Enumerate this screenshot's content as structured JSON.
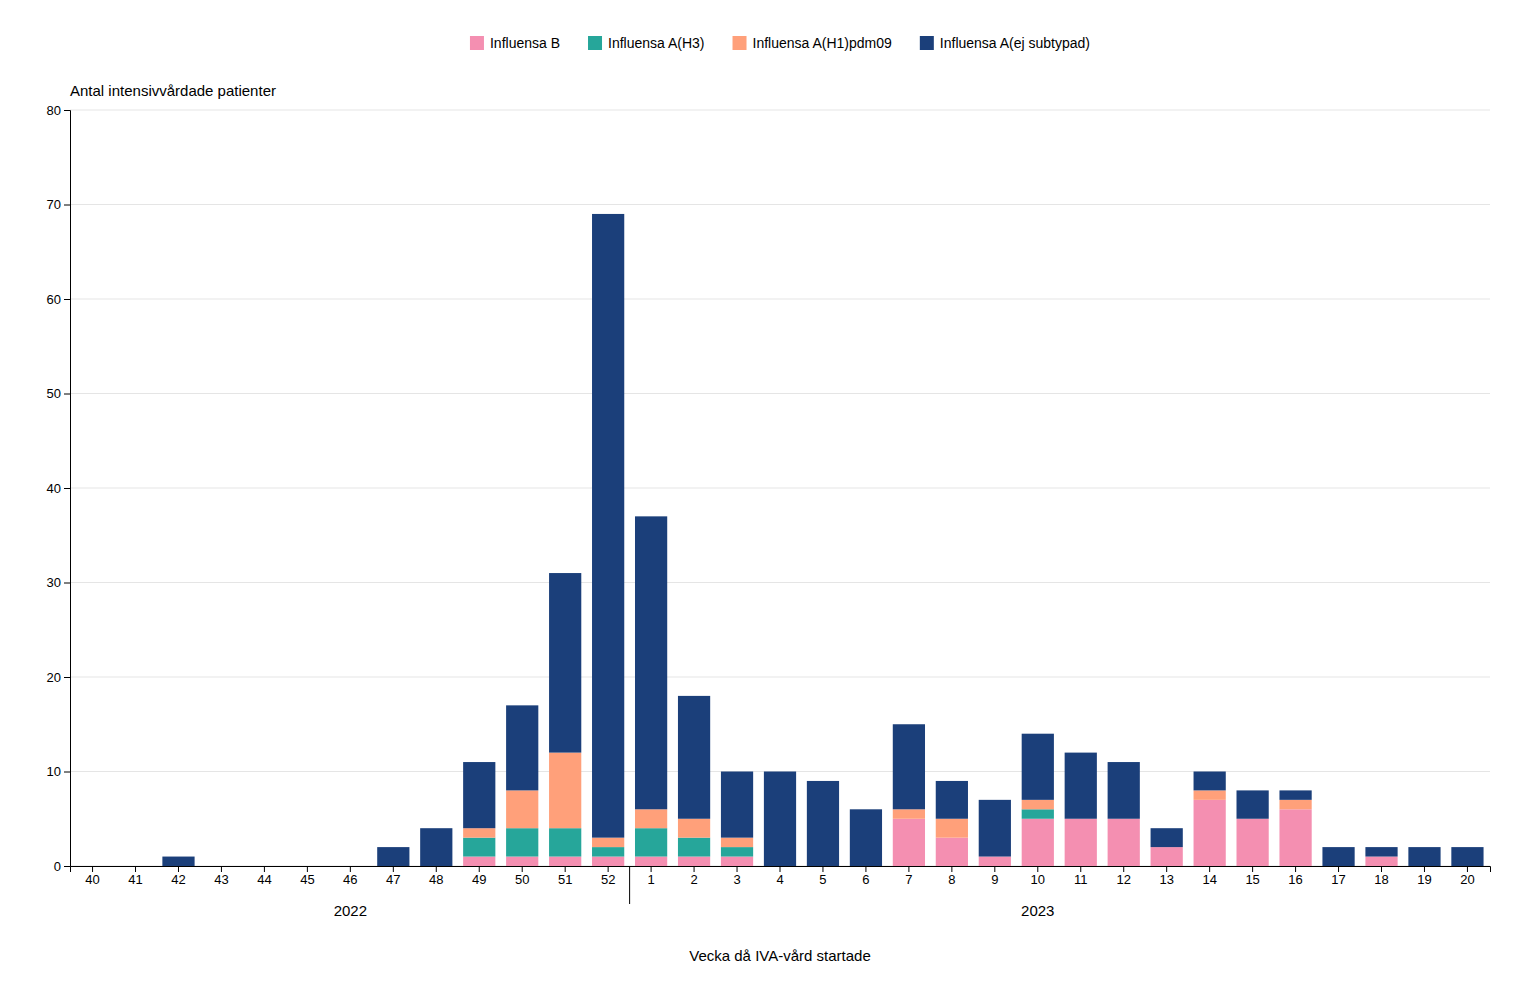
{
  "chart_data": {
    "type": "bar",
    "stacked": true,
    "grid": true,
    "legend": "top",
    "y_label": "Antal intensivvårdade patienter",
    "x_label": "Vecka då IVA-vård startade",
    "categories": [
      "40",
      "41",
      "42",
      "43",
      "44",
      "45",
      "46",
      "47",
      "48",
      "49",
      "50",
      "51",
      "52",
      "1",
      "2",
      "3",
      "4",
      "5",
      "6",
      "7",
      "8",
      "9",
      "10",
      "11",
      "12",
      "13",
      "14",
      "15",
      "16",
      "17",
      "18",
      "19",
      "20"
    ],
    "series": [
      {
        "name": "Influensa B",
        "color": "#F48FB1",
        "values": [
          0,
          0,
          0,
          0,
          0,
          0,
          0,
          0,
          0,
          1,
          1,
          1,
          1,
          1,
          1,
          1,
          0,
          0,
          0,
          5,
          3,
          1,
          5,
          5,
          5,
          2,
          7,
          5,
          6,
          0,
          1,
          0,
          0
        ]
      },
      {
        "name": "Influensa A(H3)",
        "color": "#26A69A",
        "values": [
          0,
          0,
          0,
          0,
          0,
          0,
          0,
          0,
          0,
          2,
          3,
          3,
          1,
          3,
          2,
          1,
          0,
          0,
          0,
          0,
          0,
          0,
          1,
          0,
          0,
          0,
          0,
          0,
          0,
          0,
          0,
          0,
          0
        ]
      },
      {
        "name": "Influensa A(H1)pdm09",
        "color": "#FFA07A",
        "values": [
          0,
          0,
          0,
          0,
          0,
          0,
          0,
          0,
          0,
          1,
          4,
          8,
          1,
          2,
          2,
          1,
          0,
          0,
          0,
          1,
          2,
          0,
          1,
          0,
          0,
          0,
          1,
          0,
          1,
          0,
          0,
          0,
          0
        ]
      },
      {
        "name": "Influensa A(ej subtypad)",
        "color": "#1B3F7A",
        "values": [
          0,
          0,
          1,
          0,
          0,
          0,
          0,
          2,
          4,
          7,
          9,
          19,
          66,
          31,
          13,
          7,
          10,
          9,
          6,
          9,
          4,
          6,
          7,
          7,
          6,
          2,
          2,
          3,
          1,
          2,
          1,
          2,
          2
        ]
      }
    ],
    "ylim": [
      0,
      80
    ],
    "yticks": [
      0,
      10,
      20,
      30,
      40,
      50,
      60,
      70,
      80
    ],
    "annotations": [
      {
        "text": "2022",
        "x": "46"
      },
      {
        "text": "2023",
        "x": "10"
      }
    ]
  }
}
